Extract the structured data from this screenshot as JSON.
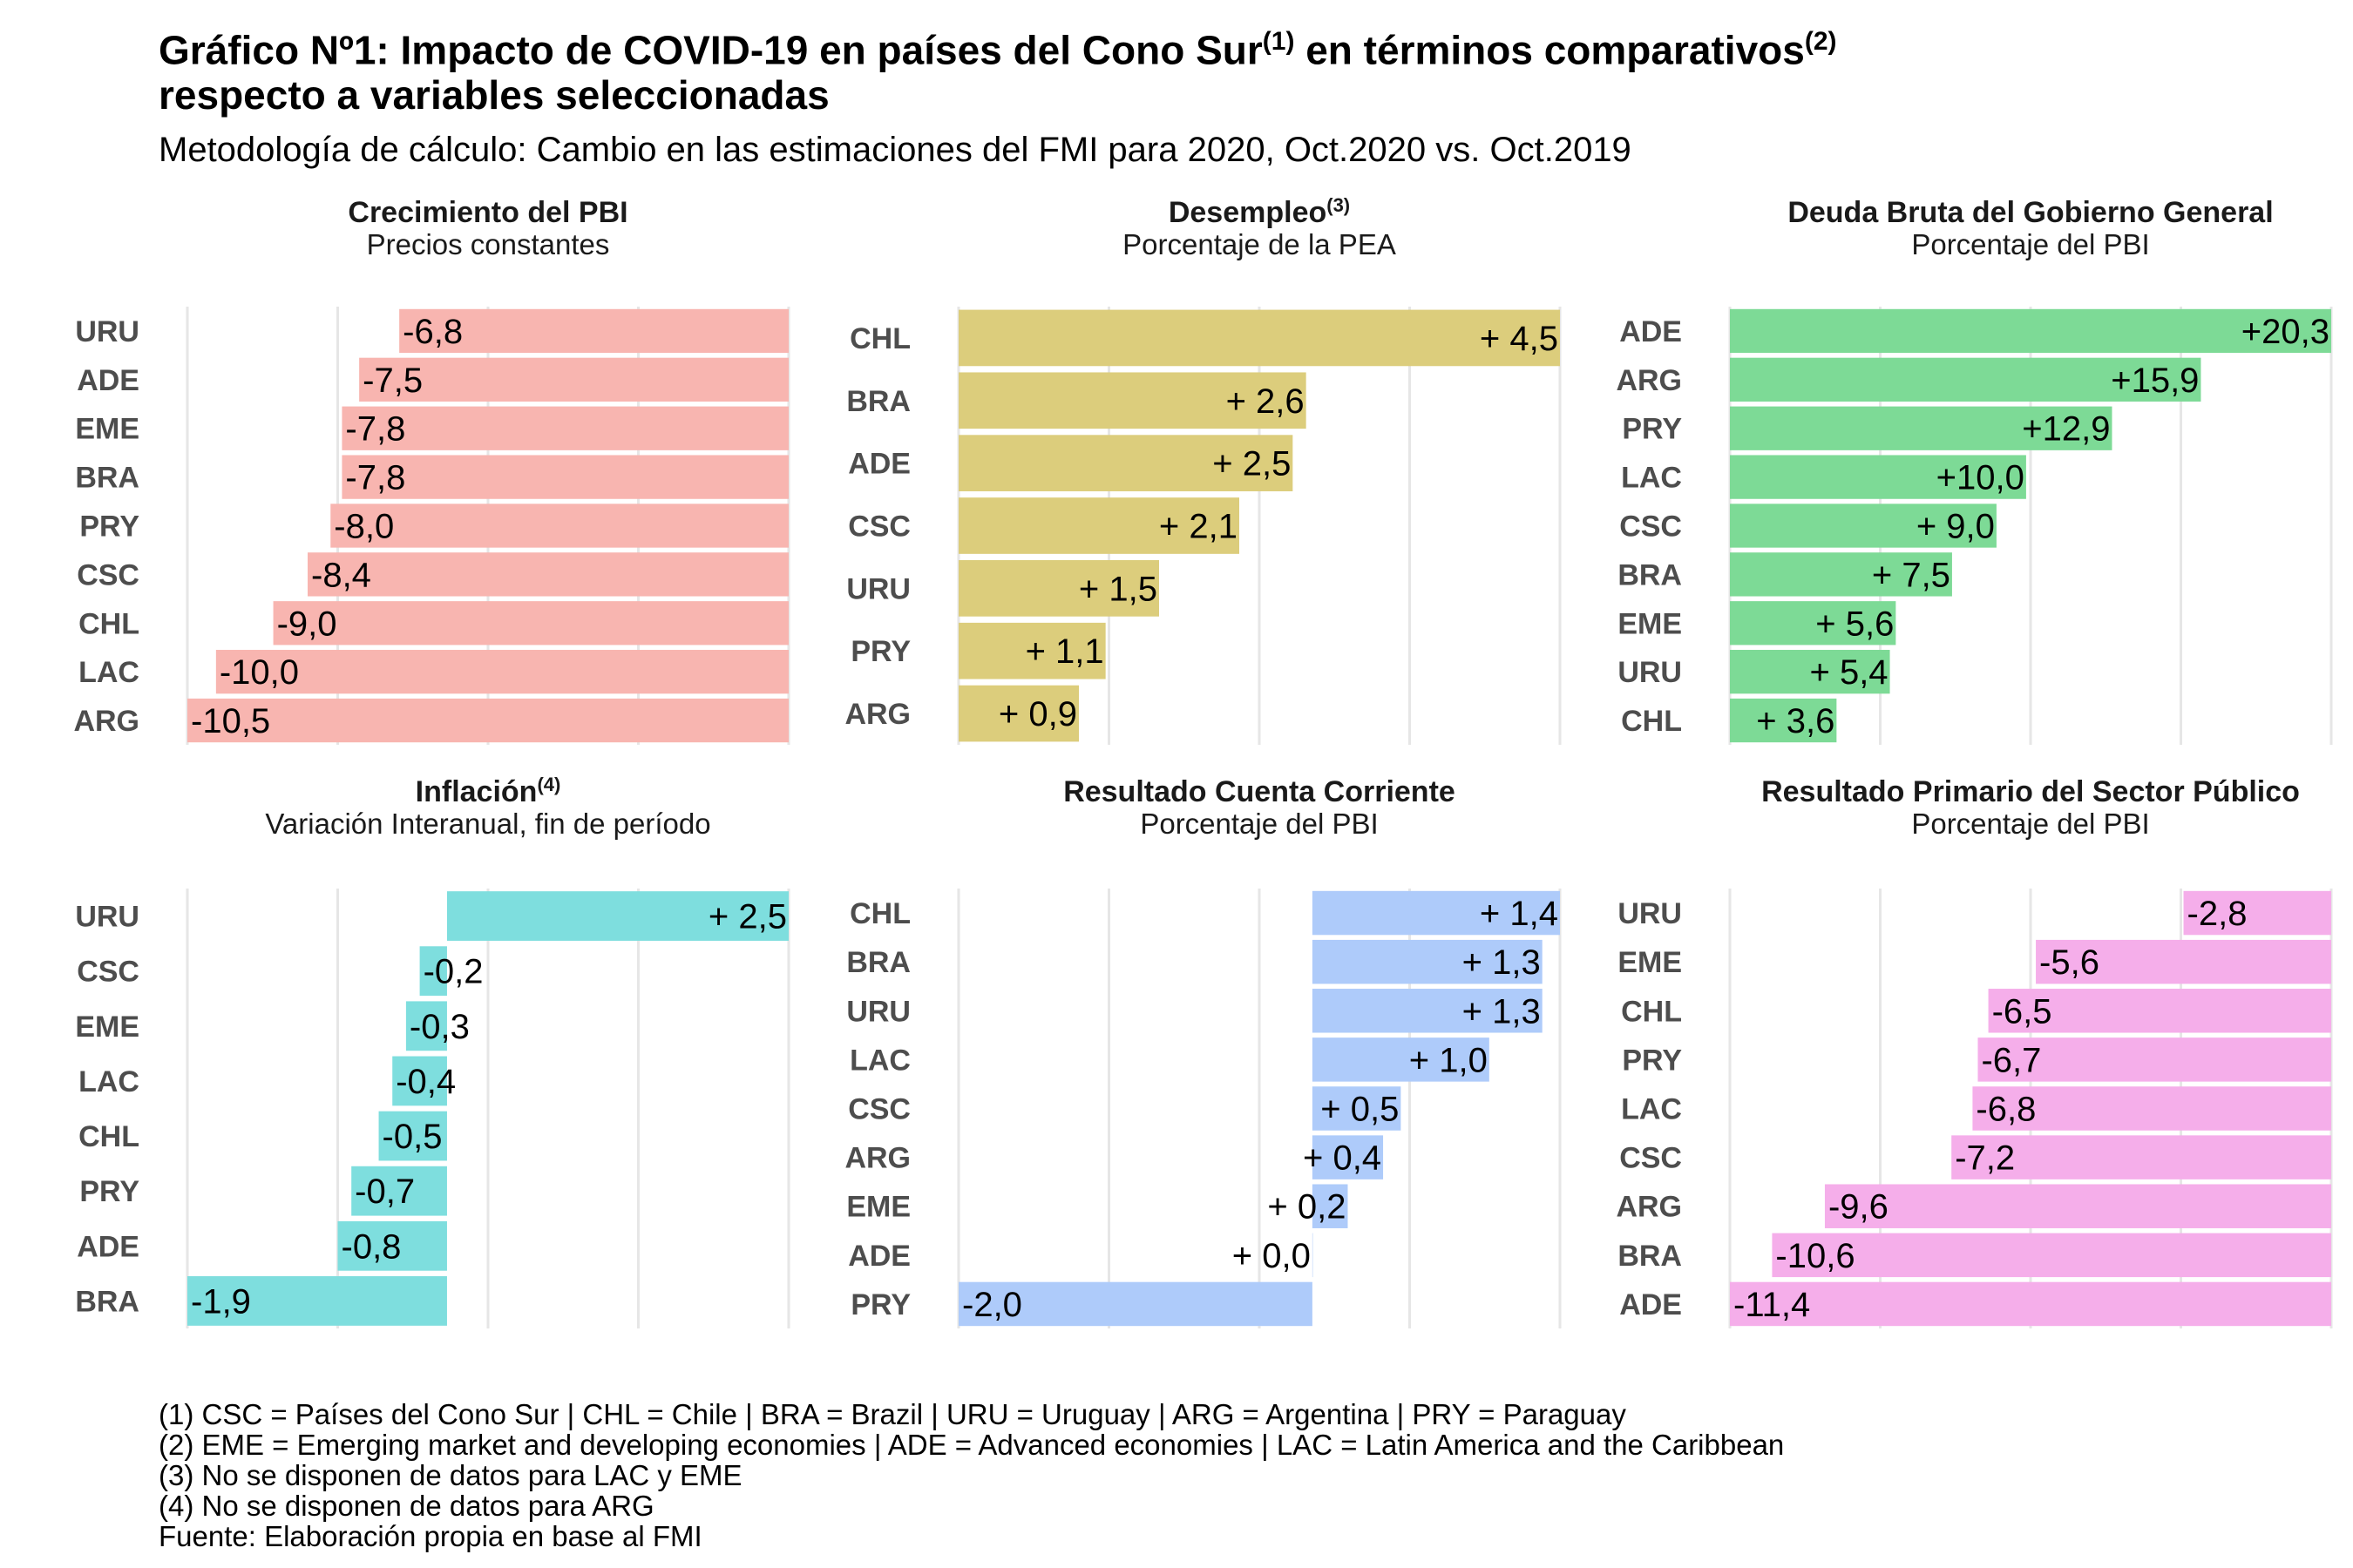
{
  "title_main": "Gráfico Nº1: Impacto de COVID-19 en países del Cono Sur",
  "title_sup1": "(1)",
  "title_mid": " en términos comparativos",
  "title_sup2": "(2)",
  "title_line2": "respecto a variables seleccionadas",
  "subtitle": "Metodología de cálculo: Cambio en las estimaciones del FMI para 2020, Oct.2020 vs. Oct.2019",
  "colors": {
    "pbi": "#F8B5B0",
    "desempleo": "#DCCD7C",
    "deuda": "#7DDA96",
    "inflacion": "#7EDEDE",
    "cuenta": "#AECBFA",
    "primario": "#F5AEEA",
    "grid": "#E6E6E6",
    "label": "#4D4D4D"
  },
  "chart_data": [
    {
      "type": "bar",
      "title": "Crecimiento del PBI",
      "title_sup": "",
      "subtitle": "Precios constantes",
      "categories": [
        "URU",
        "ADE",
        "EME",
        "BRA",
        "PRY",
        "CSC",
        "CHL",
        "LAC",
        "ARG"
      ],
      "values": [
        -6.8,
        -7.5,
        -7.8,
        -7.8,
        -8.0,
        -8.4,
        -9.0,
        -10.0,
        -10.5
      ],
      "data_labels": [
        "-6,8",
        "-7,5",
        "-7,8",
        "-7,8",
        "-8,0",
        "-8,4",
        "-9,0",
        "-10,0",
        "-10,5"
      ],
      "xlim": [
        -10.5,
        0
      ],
      "grid": true,
      "color_key": "pbi"
    },
    {
      "type": "bar",
      "title": "Desempleo",
      "title_sup": "(3)",
      "subtitle": "Porcentaje de la PEA",
      "categories": [
        "CHL",
        "BRA",
        "ADE",
        "CSC",
        "URU",
        "PRY",
        "ARG"
      ],
      "values": [
        4.5,
        2.6,
        2.5,
        2.1,
        1.5,
        1.1,
        0.9
      ],
      "data_labels": [
        "+ 4,5",
        "+ 2,6",
        "+ 2,5",
        "+ 2,1",
        "+ 1,5",
        "+ 1,1",
        "+ 0,9"
      ],
      "xlim": [
        0,
        4.5
      ],
      "grid": true,
      "color_key": "desempleo"
    },
    {
      "type": "bar",
      "title": "Deuda Bruta del Gobierno General",
      "title_sup": "",
      "subtitle": "Porcentaje del PBI",
      "categories": [
        "ADE",
        "ARG",
        "PRY",
        "LAC",
        "CSC",
        "BRA",
        "EME",
        "URU",
        "CHL"
      ],
      "values": [
        20.3,
        15.9,
        12.9,
        10.0,
        9.0,
        7.5,
        5.6,
        5.4,
        3.6
      ],
      "data_labels": [
        "+20,3",
        "+15,9",
        "+12,9",
        "+10,0",
        "+ 9,0",
        "+ 7,5",
        "+ 5,6",
        "+ 5,4",
        "+ 3,6"
      ],
      "xlim": [
        0,
        20.3
      ],
      "grid": true,
      "color_key": "deuda"
    },
    {
      "type": "bar",
      "title": "Inflación",
      "title_sup": "(4)",
      "subtitle": "Variación Interanual, fin de período",
      "categories": [
        "URU",
        "CSC",
        "EME",
        "LAC",
        "CHL",
        "PRY",
        "ADE",
        "BRA"
      ],
      "values": [
        2.5,
        -0.2,
        -0.3,
        -0.4,
        -0.5,
        -0.7,
        -0.8,
        -1.9
      ],
      "data_labels": [
        "+ 2,5",
        "-0,2",
        "-0,3",
        "-0,4",
        "-0,5",
        "-0,7",
        "-0,8",
        "-1,9"
      ],
      "xlim": [
        -1.9,
        2.5
      ],
      "grid": true,
      "color_key": "inflacion"
    },
    {
      "type": "bar",
      "title": "Resultado Cuenta Corriente",
      "title_sup": "",
      "subtitle": "Porcentaje del PBI",
      "categories": [
        "CHL",
        "BRA",
        "URU",
        "LAC",
        "CSC",
        "ARG",
        "EME",
        "ADE",
        "PRY"
      ],
      "values": [
        1.4,
        1.3,
        1.3,
        1.0,
        0.5,
        0.4,
        0.2,
        0.0,
        -2.0
      ],
      "data_labels": [
        "+ 1,4",
        "+ 1,3",
        "+ 1,3",
        "+ 1,0",
        "+ 0,5",
        "+ 0,4",
        "+ 0,2",
        "+ 0,0",
        "-2,0"
      ],
      "xlim": [
        -2.0,
        1.4
      ],
      "grid": true,
      "color_key": "cuenta"
    },
    {
      "type": "bar",
      "title": "Resultado Primario del Sector Público",
      "title_sup": "",
      "subtitle": "Porcentaje del PBI",
      "categories": [
        "URU",
        "EME",
        "CHL",
        "PRY",
        "LAC",
        "CSC",
        "ARG",
        "BRA",
        "ADE"
      ],
      "values": [
        -2.8,
        -5.6,
        -6.5,
        -6.7,
        -6.8,
        -7.2,
        -9.6,
        -10.6,
        -11.4
      ],
      "data_labels": [
        "-2,8",
        "-5,6",
        "-6,5",
        "-6,7",
        "-6,8",
        "-7,2",
        "-9,6",
        "-10,6",
        "-11,4"
      ],
      "xlim": [
        -11.4,
        0
      ],
      "grid": true,
      "color_key": "primario"
    }
  ],
  "notes": [
    "(1) CSC = Países del Cono Sur | CHL = Chile | BRA = Brazil | URU = Uruguay | ARG = Argentina | PRY = Paraguay",
    "(2) EME = Emerging market and developing economies | ADE = Advanced economies | LAC = Latin America and the Caribbean",
    "(3) No se disponen de datos para LAC y EME",
    "(4) No se disponen de datos para ARG",
    "Fuente: Elaboración propia en base al FMI"
  ]
}
